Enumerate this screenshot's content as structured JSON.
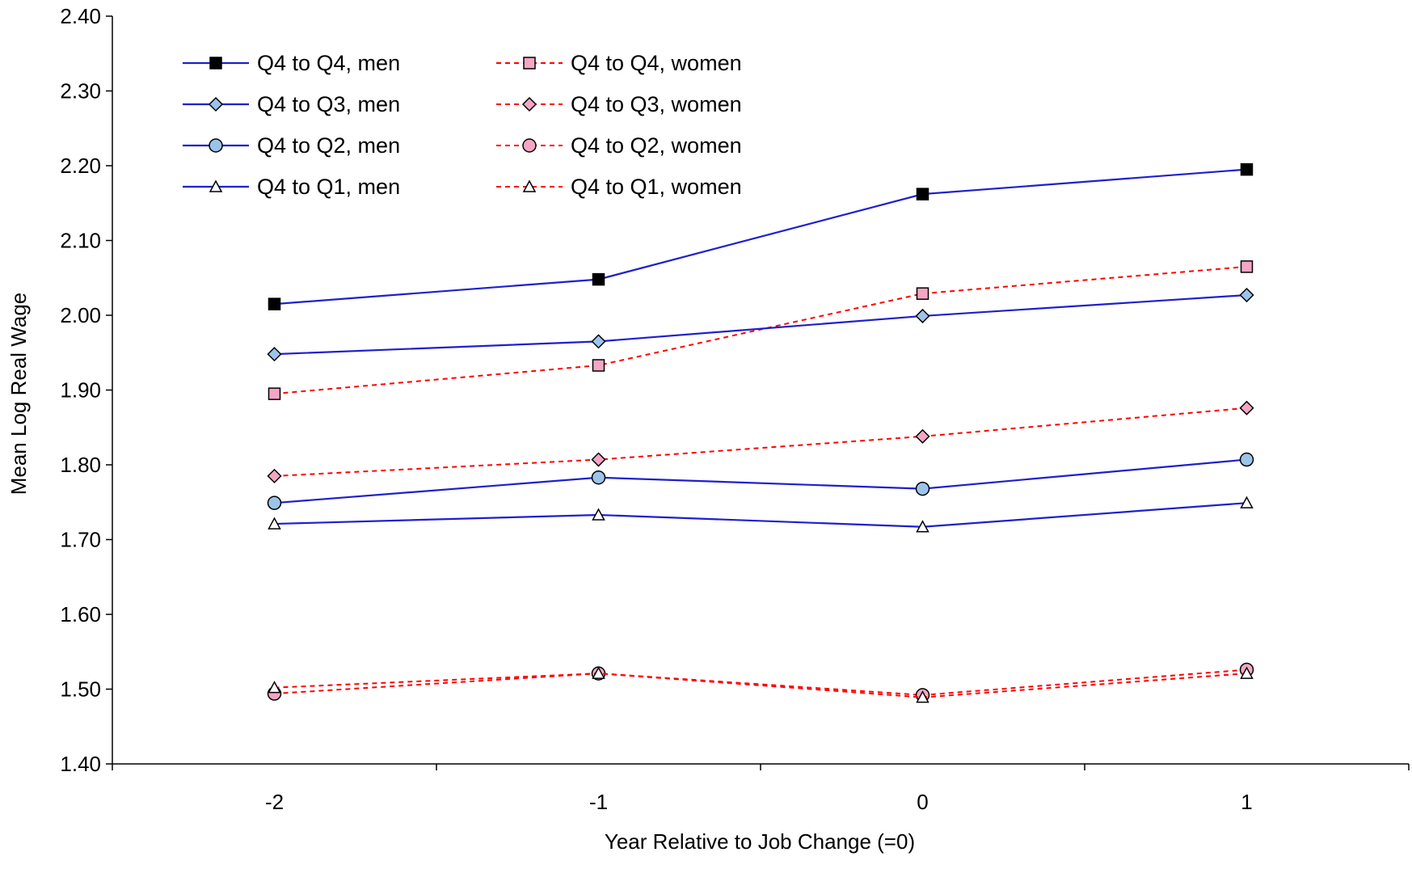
{
  "chart_data": {
    "type": "line",
    "title": "",
    "xlabel": "Year Relative to Job Change (=0)",
    "ylabel": "Mean Log Real Wage",
    "categories": [
      "-2",
      "-1",
      "0",
      "1"
    ],
    "ylim": [
      1.4,
      2.4
    ],
    "yticks": [
      "1.40",
      "1.50",
      "1.60",
      "1.70",
      "1.80",
      "1.90",
      "2.00",
      "2.10",
      "2.20",
      "2.30",
      "2.40"
    ],
    "grid": false,
    "legend_position": "top-left",
    "series": [
      {
        "name": "Q4 to Q4, men",
        "values": [
          2.015,
          2.048,
          2.162,
          2.195
        ],
        "color": "#1f1fcf",
        "dash": false,
        "marker": "square",
        "marker_fill": "#000000"
      },
      {
        "name": "Q4 to Q4, women",
        "values": [
          1.895,
          1.933,
          2.029,
          2.065
        ],
        "color": "#ff0000",
        "dash": true,
        "marker": "square",
        "marker_fill": "#f4a6c4"
      },
      {
        "name": "Q4 to Q3, men",
        "values": [
          1.948,
          1.965,
          1.999,
          2.027
        ],
        "color": "#1f1fcf",
        "dash": false,
        "marker": "diamond",
        "marker_fill": "#9cc4ea"
      },
      {
        "name": "Q4 to Q3, women",
        "values": [
          1.785,
          1.807,
          1.838,
          1.876
        ],
        "color": "#ff0000",
        "dash": true,
        "marker": "diamond",
        "marker_fill": "#f4a6c4"
      },
      {
        "name": "Q4 to Q2, men",
        "values": [
          1.749,
          1.783,
          1.768,
          1.807
        ],
        "color": "#1f1fcf",
        "dash": false,
        "marker": "circle",
        "marker_fill": "#9cc4ea"
      },
      {
        "name": "Q4 to Q2, women",
        "values": [
          1.494,
          1.521,
          1.492,
          1.526
        ],
        "color": "#ff0000",
        "dash": true,
        "marker": "circle",
        "marker_fill": "#f4a6c4"
      },
      {
        "name": "Q4 to Q1, men",
        "values": [
          1.721,
          1.733,
          1.717,
          1.749
        ],
        "color": "#1f1fcf",
        "dash": false,
        "marker": "triangle",
        "marker_fill": "#ffffff"
      },
      {
        "name": "Q4 to Q1, women",
        "values": [
          1.502,
          1.521,
          1.489,
          1.521
        ],
        "color": "#ff0000",
        "dash": true,
        "marker": "triangle",
        "marker_fill": "#ffffff"
      }
    ]
  }
}
